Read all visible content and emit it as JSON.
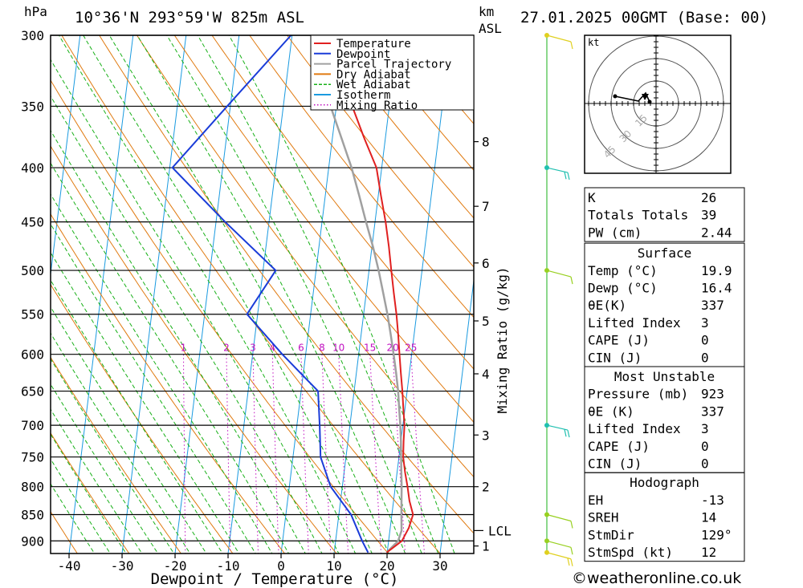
{
  "header": {
    "pressure_unit": "hPa",
    "location": "10°36'N 293°59'W 825m ASL",
    "km_label": "km",
    "asl_label": "ASL",
    "datetime": "27.01.2025 00GMT (Base: 00)"
  },
  "chart_data": {
    "type": "line",
    "title": "",
    "xlabel": "Dewpoint / Temperature (°C)",
    "ylabel": "hPa",
    "right_label": "Mixing Ratio (g/kg)",
    "x_ticks": [
      "-40",
      "-30",
      "-20",
      "-10",
      "0",
      "10",
      "20",
      "30"
    ],
    "pressure_levels": [
      300,
      350,
      400,
      450,
      500,
      550,
      600,
      650,
      700,
      750,
      800,
      850,
      900
    ],
    "height_km": [
      {
        "km": "8",
        "p": 378
      },
      {
        "km": "7",
        "p": 435
      },
      {
        "km": "6",
        "p": 492
      },
      {
        "km": "5",
        "p": 558
      },
      {
        "km": "4",
        "p": 626
      },
      {
        "km": "3",
        "p": 715
      },
      {
        "km": "2",
        "p": 800
      },
      {
        "km": "1",
        "p": 910
      }
    ],
    "lcl": {
      "label": "LCL",
      "p": 880
    },
    "mixing_ratios": [
      "1",
      "2",
      "3",
      "4",
      "6",
      "8",
      "10",
      "15",
      "20",
      "25"
    ],
    "legend": [
      {
        "name": "Temperature",
        "color": "#e02020",
        "style": "solid"
      },
      {
        "name": "Dewpoint",
        "color": "#1a3cd8",
        "style": "solid"
      },
      {
        "name": "Parcel Trajectory",
        "color": "#a0a0a0",
        "style": "solid"
      },
      {
        "name": "Dry Adiabat",
        "color": "#e07a10",
        "style": "solid"
      },
      {
        "name": "Wet Adiabat",
        "color": "#18b018",
        "style": "dashed"
      },
      {
        "name": "Isotherm",
        "color": "#1a9ae0",
        "style": "solid"
      },
      {
        "name": "Mixing Ratio",
        "color": "#c010c0",
        "style": "dotted"
      }
    ],
    "series": [
      {
        "name": "Temperature",
        "points": [
          [
            -2.4,
            300
          ],
          [
            0.3,
            325
          ],
          [
            3,
            350
          ],
          [
            6,
            375
          ],
          [
            9,
            400
          ],
          [
            10.5,
            425
          ],
          [
            12,
            450
          ],
          [
            13.2,
            475
          ],
          [
            14.2,
            500
          ],
          [
            15.2,
            525
          ],
          [
            16.2,
            550
          ],
          [
            17,
            575
          ],
          [
            17.7,
            600
          ],
          [
            18.4,
            625
          ],
          [
            19.1,
            650
          ],
          [
            19.7,
            675
          ],
          [
            20.3,
            700
          ],
          [
            20.5,
            725
          ],
          [
            20.8,
            750
          ],
          [
            21.5,
            775
          ],
          [
            22.3,
            800
          ],
          [
            23,
            825
          ],
          [
            24,
            850
          ],
          [
            23.5,
            875
          ],
          [
            22.5,
            900
          ],
          [
            19.9,
            923
          ]
        ]
      },
      {
        "name": "Dewpoint",
        "points": [
          [
            -10.2,
            300
          ],
          [
            -20.6,
            350
          ],
          [
            -29.5,
            400
          ],
          [
            -18.3,
            450
          ],
          [
            -7.6,
            500
          ],
          [
            -12,
            550
          ],
          [
            -4.4,
            600
          ],
          [
            3.2,
            650
          ],
          [
            4.3,
            700
          ],
          [
            5.2,
            750
          ],
          [
            7.8,
            800
          ],
          [
            12.3,
            850
          ],
          [
            15,
            900
          ],
          [
            16.4,
            923
          ]
        ]
      },
      {
        "name": "Parcel Trajectory",
        "points": [
          [
            -5.6,
            320
          ],
          [
            -1.1,
            350
          ],
          [
            1.7,
            375
          ],
          [
            4.3,
            400
          ],
          [
            6.4,
            425
          ],
          [
            8.3,
            450
          ],
          [
            10.2,
            475
          ],
          [
            11.8,
            500
          ],
          [
            13.2,
            525
          ],
          [
            14.5,
            550
          ],
          [
            15.6,
            575
          ],
          [
            16.6,
            600
          ],
          [
            17.5,
            625
          ],
          [
            18.3,
            650
          ],
          [
            18.9,
            675
          ],
          [
            19.5,
            700
          ],
          [
            20,
            725
          ],
          [
            20.4,
            750
          ],
          [
            20.8,
            775
          ],
          [
            21.2,
            800
          ],
          [
            21.5,
            825
          ],
          [
            21.8,
            850
          ],
          [
            22.2,
            880
          ],
          [
            21.8,
            900
          ],
          [
            19.9,
            923
          ]
        ]
      }
    ],
    "hodograph": {
      "unit": "kt",
      "rings": [
        "15",
        "30",
        "45"
      ],
      "stations": [
        {
          "dir": 275,
          "speed": 18
        },
        {
          "dir": 280,
          "speed": 10
        },
        {
          "dir": 300,
          "speed": 4
        },
        {
          "dir": 150,
          "speed": 3
        }
      ]
    },
    "wind_profile": [
      {
        "p": 300,
        "dir": 250,
        "speed": 5,
        "color": "#e0d020"
      },
      {
        "p": 400,
        "dir": 80,
        "speed": 20,
        "color": "#20c0b0"
      },
      {
        "p": 500,
        "dir": 280,
        "speed": 12,
        "color": "#98d020"
      },
      {
        "p": 700,
        "dir": 80,
        "speed": 20,
        "color": "#20c0b0"
      },
      {
        "p": 850,
        "dir": 290,
        "speed": 12,
        "color": "#98d020"
      },
      {
        "p": 900,
        "dir": 290,
        "speed": 12,
        "color": "#98d020"
      },
      {
        "p": 923,
        "dir": 290,
        "speed": 15,
        "color": "#e0d020"
      }
    ]
  },
  "indices": {
    "general": [
      {
        "label": "K",
        "value": "26"
      },
      {
        "label": "Totals Totals",
        "value": "39"
      },
      {
        "label": "PW (cm)",
        "value": "2.44"
      }
    ],
    "surface": {
      "title": "Surface",
      "rows": [
        {
          "label": "Temp (°C)",
          "value": "19.9"
        },
        {
          "label": "Dewp (°C)",
          "value": "16.4"
        },
        {
          "label": "θE(K)",
          "value": "337"
        },
        {
          "label": "Lifted Index",
          "value": "3"
        },
        {
          "label": "CAPE (J)",
          "value": "0"
        },
        {
          "label": "CIN (J)",
          "value": "0"
        }
      ]
    },
    "most_unstable": {
      "title": "Most Unstable",
      "rows": [
        {
          "label": "Pressure (mb)",
          "value": "923"
        },
        {
          "label": "θE (K)",
          "value": "337"
        },
        {
          "label": "Lifted Index",
          "value": "3"
        },
        {
          "label": "CAPE (J)",
          "value": "0"
        },
        {
          "label": "CIN (J)",
          "value": "0"
        }
      ]
    },
    "hodograph_table": {
      "title": "Hodograph",
      "rows": [
        {
          "label": "EH",
          "value": "-13"
        },
        {
          "label": "SREH",
          "value": "14"
        },
        {
          "label": "StmDir",
          "value": "129°"
        },
        {
          "label": "StmSpd (kt)",
          "value": "12"
        }
      ]
    }
  },
  "footer": {
    "credit": "©weatheronline.co.uk"
  }
}
